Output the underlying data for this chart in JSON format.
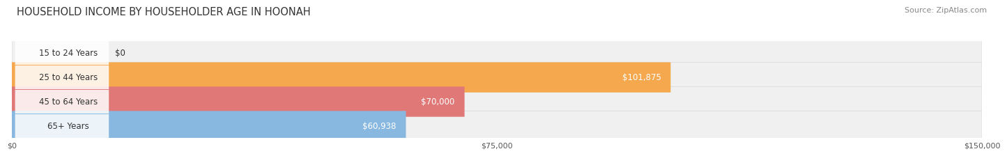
{
  "title": "HOUSEHOLD INCOME BY HOUSEHOLDER AGE IN HOONAH",
  "source": "Source: ZipAtlas.com",
  "categories": [
    "15 to 24 Years",
    "25 to 44 Years",
    "45 to 64 Years",
    "65+ Years"
  ],
  "values": [
    0,
    101875,
    70000,
    60938
  ],
  "bar_colors": [
    "#f4a0b0",
    "#f5a84e",
    "#e07878",
    "#88b8e0"
  ],
  "bar_bg_color": "#f0f0f0",
  "value_labels": [
    "$0",
    "$101,875",
    "$70,000",
    "$60,938"
  ],
  "xlim": [
    0,
    150000
  ],
  "xticks": [
    0,
    75000,
    150000
  ],
  "xtick_labels": [
    "$0",
    "$75,000",
    "$150,000"
  ],
  "background_color": "#ffffff",
  "title_fontsize": 10.5,
  "source_fontsize": 8,
  "label_fontsize": 8.5,
  "value_fontsize": 8.5
}
